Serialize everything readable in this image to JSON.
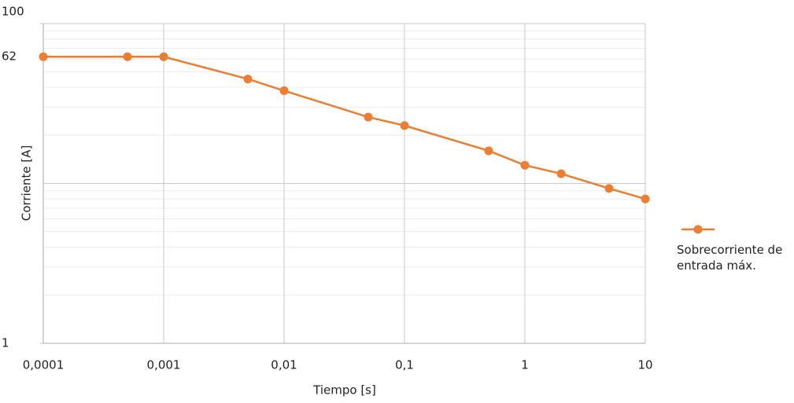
{
  "chart_data": {
    "type": "line",
    "x_label": "Tiempo [s]",
    "y_label": "Corriente [A]",
    "x": [
      0.0001,
      0.0005,
      0.001,
      0.005,
      0.01,
      0.05,
      0.1,
      0.5,
      1,
      2,
      5,
      10
    ],
    "series": [
      {
        "name": "Sobrecorriente de entrada máx.",
        "color": "#ed7d31",
        "values": [
          62,
          62,
          62,
          45,
          38,
          26,
          23,
          16,
          13,
          11.5,
          9.3,
          8
        ]
      }
    ],
    "xlim": [
      0.0001,
      10
    ],
    "xticks": [
      {
        "value": 0.0001,
        "label": "0,0001"
      },
      {
        "value": 0.001,
        "label": "0,001"
      },
      {
        "value": 0.01,
        "label": "0,01"
      },
      {
        "value": 0.1,
        "label": "0,1"
      },
      1,
      10
    ],
    "ylim": [
      1,
      100
    ],
    "yticks": [
      1,
      62,
      100
    ],
    "x_log": true,
    "y_log": true,
    "grid": true,
    "legend": "right"
  }
}
